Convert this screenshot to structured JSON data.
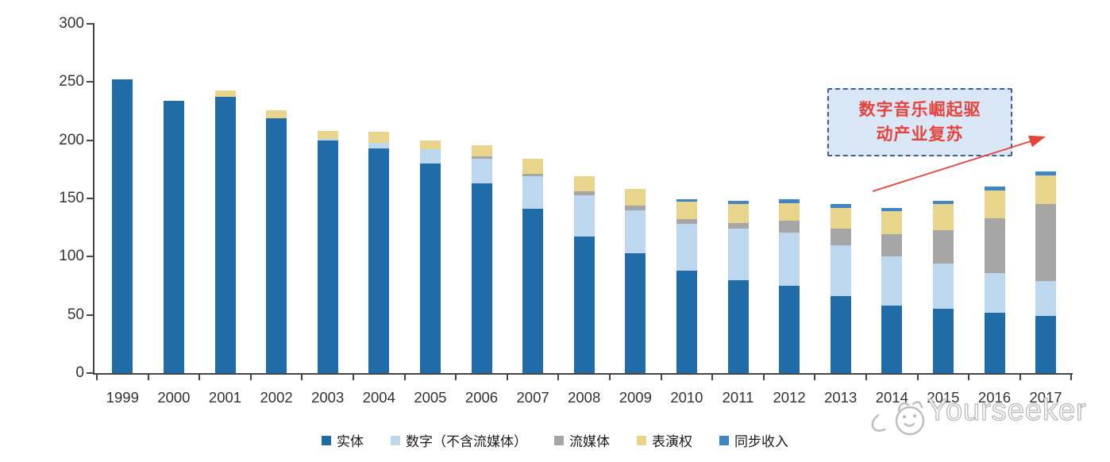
{
  "chart_data": {
    "type": "bar",
    "stacked": true,
    "categories": [
      "1999",
      "2000",
      "2001",
      "2002",
      "2003",
      "2004",
      "2005",
      "2006",
      "2007",
      "2008",
      "2009",
      "2010",
      "2011",
      "2012",
      "2013",
      "2014",
      "2015",
      "2016",
      "2017"
    ],
    "series": [
      {
        "name": "实体",
        "color": "#1F6CA9",
        "values": [
          252,
          234,
          237,
          219,
          200,
          193,
          180,
          163,
          141,
          117,
          103,
          88,
          80,
          75,
          66,
          58,
          55,
          52,
          49
        ]
      },
      {
        "name": "数字（不含流媒体）",
        "color": "#BDD7EE",
        "values": [
          0,
          0,
          0,
          0,
          1,
          5,
          12,
          21,
          28,
          36,
          37,
          40,
          44,
          46,
          44,
          42,
          39,
          34,
          30
        ]
      },
      {
        "name": "流媒体",
        "color": "#A6A6A6",
        "values": [
          0,
          0,
          0,
          0,
          0,
          0,
          0,
          2,
          2,
          3,
          4,
          4,
          5,
          10,
          14,
          19,
          29,
          47,
          66
        ]
      },
      {
        "name": "表演权",
        "color": "#E8D48B",
        "values": [
          0,
          0,
          6,
          7,
          7,
          9,
          8,
          10,
          13,
          13,
          14,
          15,
          16,
          15,
          18,
          20,
          22,
          24,
          25
        ]
      },
      {
        "name": "同步收入",
        "color": "#3E86C6",
        "values": [
          0,
          0,
          0,
          0,
          0,
          0,
          0,
          0,
          0,
          0,
          0,
          2,
          3,
          3,
          3,
          3,
          3,
          3,
          3
        ]
      }
    ],
    "title": "",
    "xlabel": "",
    "ylabel": "",
    "ylim": [
      0,
      300
    ],
    "yticks": [
      0,
      50,
      100,
      150,
      200,
      250,
      300
    ],
    "grid": false,
    "legend_position": "bottom"
  },
  "annotation": {
    "line1": "数字音乐崛起驱",
    "line2": "动产业复苏",
    "text_color": "#E8433A",
    "border_color": "#3D5F9B",
    "fill_color": "#D9E7F6",
    "arrow_color": "#E8433A"
  },
  "watermark": {
    "text": "Yourseeker"
  },
  "colors": {
    "axis": "#454545",
    "tick_label": "#333333"
  }
}
